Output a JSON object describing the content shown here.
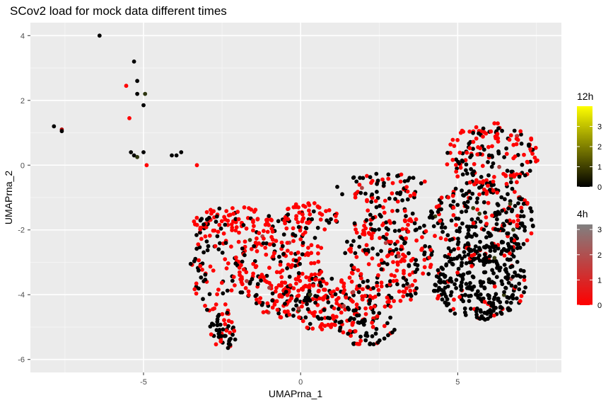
{
  "chart_data": {
    "type": "scatter",
    "title": "SCov2 load for mock data different times",
    "xlabel": "UMAPrna_1",
    "ylabel": "UMAPrna_2",
    "xlim": [
      -8.6,
      8.3
    ],
    "ylim": [
      -6.4,
      4.4
    ],
    "x_ticks": [
      -5,
      0,
      5
    ],
    "y_ticks": [
      -6,
      -4,
      -2,
      0,
      2,
      4
    ],
    "grid": true,
    "panel_background": "#ebebeb",
    "legend_position": "right",
    "colors": {
      "mock_low": "#ff0000",
      "infected_low": "#000000",
      "high_12h": "#ffff00",
      "high_4h": "#808080"
    },
    "legends": [
      {
        "title": "12h",
        "gradient": [
          "#000000",
          "#ffff00"
        ],
        "ticks": [
          0,
          1,
          2,
          3
        ],
        "range": [
          0,
          4
        ]
      },
      {
        "title": "4h",
        "gradient": [
          "#ff0000",
          "#808080"
        ],
        "ticks": [
          0,
          1,
          2,
          3
        ],
        "range": [
          0,
          3.2
        ]
      }
    ],
    "outlier_points": [
      {
        "x": -6.4,
        "y": 4.0,
        "c": "#000000"
      },
      {
        "x": -5.3,
        "y": 3.2,
        "c": "#000000"
      },
      {
        "x": -5.2,
        "y": 2.6,
        "c": "#000000"
      },
      {
        "x": -5.55,
        "y": 2.45,
        "c": "#ff0000"
      },
      {
        "x": -5.2,
        "y": 2.2,
        "c": "#000000"
      },
      {
        "x": -4.95,
        "y": 2.2,
        "c": "#2d3510"
      },
      {
        "x": -5.0,
        "y": 1.85,
        "c": "#000000"
      },
      {
        "x": -5.45,
        "y": 1.45,
        "c": "#ff0000"
      },
      {
        "x": -7.85,
        "y": 1.2,
        "c": "#000000"
      },
      {
        "x": -7.6,
        "y": 1.1,
        "c": "#b00000"
      },
      {
        "x": -7.6,
        "y": 1.05,
        "c": "#000000"
      },
      {
        "x": -5.4,
        "y": 0.4,
        "c": "#000000"
      },
      {
        "x": -5.3,
        "y": 0.3,
        "c": "#000000"
      },
      {
        "x": -5.2,
        "y": 0.25,
        "c": "#2d3510"
      },
      {
        "x": -5.0,
        "y": 0.4,
        "c": "#000000"
      },
      {
        "x": -4.1,
        "y": 0.3,
        "c": "#000000"
      },
      {
        "x": -3.95,
        "y": 0.3,
        "c": "#000000"
      },
      {
        "x": -3.8,
        "y": 0.4,
        "c": "#000000"
      },
      {
        "x": -4.9,
        "y": 0.0,
        "c": "#ff0000"
      },
      {
        "x": -3.3,
        "y": 0.0,
        "c": "#ff0000"
      }
    ],
    "point_regions": [
      {
        "name": "left-lobe",
        "cx": -2.6,
        "cy": -3.0,
        "rx": 0.9,
        "ry": 1.7,
        "n": 110,
        "red": 0.45
      },
      {
        "name": "upper-left-arm",
        "cx": -2.2,
        "cy": -1.7,
        "rx": 1.3,
        "ry": 0.45,
        "n": 70,
        "red": 0.7
      },
      {
        "name": "left-bottom-tail",
        "cx": -2.5,
        "cy": -5.2,
        "rx": 0.45,
        "ry": 0.5,
        "n": 45,
        "red": 0.2
      },
      {
        "name": "center-left",
        "cx": -0.6,
        "cy": -3.2,
        "rx": 1.4,
        "ry": 1.5,
        "n": 230,
        "red": 0.72
      },
      {
        "name": "center-upper",
        "cx": 0.2,
        "cy": -1.6,
        "rx": 1.0,
        "ry": 0.5,
        "n": 60,
        "red": 0.65
      },
      {
        "name": "center-bottom",
        "cx": 0.8,
        "cy": -4.3,
        "rx": 1.6,
        "ry": 0.8,
        "n": 170,
        "red": 0.62
      },
      {
        "name": "center-right",
        "cx": 2.8,
        "cy": -2.8,
        "rx": 1.4,
        "ry": 1.6,
        "n": 250,
        "red": 0.55
      },
      {
        "name": "bottom-tail",
        "cx": 2.1,
        "cy": -5.0,
        "rx": 0.9,
        "ry": 0.6,
        "n": 60,
        "red": 0.3
      },
      {
        "name": "right-upper",
        "cx": 6.1,
        "cy": 0.3,
        "rx": 1.5,
        "ry": 1.0,
        "n": 170,
        "red": 0.55
      },
      {
        "name": "right-middle",
        "cx": 5.8,
        "cy": -1.7,
        "rx": 1.7,
        "ry": 1.2,
        "n": 260,
        "red": 0.25
      },
      {
        "name": "right-lower",
        "cx": 5.7,
        "cy": -3.6,
        "rx": 1.5,
        "ry": 1.2,
        "n": 300,
        "red": 0.12
      },
      {
        "name": "arm-top",
        "cx": 2.6,
        "cy": -0.7,
        "rx": 1.5,
        "ry": 0.45,
        "n": 70,
        "red": 0.35
      }
    ]
  }
}
